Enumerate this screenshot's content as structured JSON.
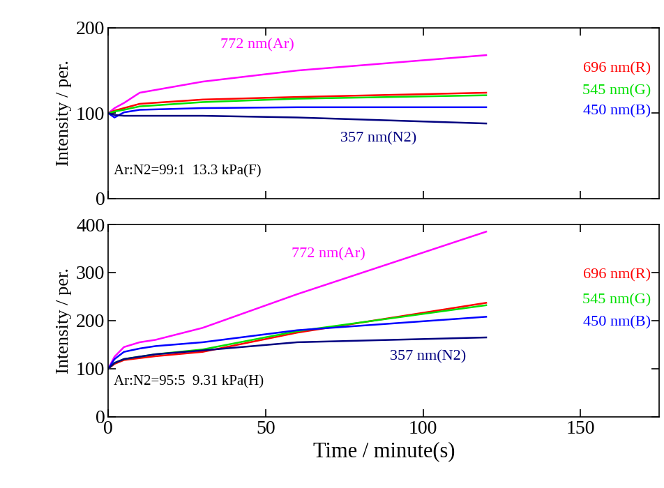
{
  "chart_data": [
    {
      "type": "line",
      "title": "Ar:N2=99:1  13.3 kPa(F)",
      "y_label": "Intensity / per.",
      "x": [
        0,
        2,
        5,
        10,
        30,
        60,
        120
      ],
      "xlim": [
        0,
        175
      ],
      "xticks": [
        0,
        50,
        100,
        150
      ],
      "ylim": [
        0,
        200
      ],
      "yticks": [
        0,
        100,
        200
      ],
      "tick_labels": "y",
      "grid": false,
      "series": [
        {
          "name": "772 nm(Ar)",
          "color": "#ff00ff",
          "values": [
            100,
            106,
            112,
            124,
            137,
            150,
            168
          ]
        },
        {
          "name": "696 nm(R)",
          "color": "#ff0000",
          "values": [
            100,
            103,
            106,
            111,
            116,
            119,
            124
          ]
        },
        {
          "name": "545 nm(G)",
          "color": "#00e000",
          "values": [
            100,
            102,
            104,
            108,
            113,
            117,
            121
          ]
        },
        {
          "name": "450 nm(B)",
          "color": "#0000ff",
          "values": [
            100,
            95,
            101,
            104,
            106,
            107,
            107
          ]
        },
        {
          "name": "357 nm(N2)",
          "color": "#000080",
          "values": [
            100,
            98,
            97,
            97,
            97,
            95,
            88
          ]
        }
      ]
    },
    {
      "type": "line",
      "title": "Ar:N2=95:5  9.31 kPa(H)",
      "x_label": "Time / minute(s)",
      "y_label": "Intensity / per.",
      "x": [
        0,
        2,
        5,
        10,
        15,
        30,
        60,
        120
      ],
      "xlim": [
        0,
        175
      ],
      "xticks": [
        0,
        50,
        100,
        150
      ],
      "ylim": [
        0,
        400
      ],
      "yticks": [
        0,
        100,
        200,
        300,
        400
      ],
      "grid": false,
      "series": [
        {
          "name": "772 nm(Ar)",
          "color": "#ff00ff",
          "values": [
            100,
            125,
            145,
            155,
            160,
            185,
            255,
            385
          ]
        },
        {
          "name": "696 nm(R)",
          "color": "#ff0000",
          "values": [
            100,
            110,
            118,
            122,
            126,
            135,
            175,
            237
          ]
        },
        {
          "name": "545 nm(G)",
          "color": "#00e000",
          "values": [
            100,
            112,
            120,
            125,
            130,
            140,
            178,
            232
          ]
        },
        {
          "name": "450 nm(B)",
          "color": "#0000ff",
          "values": [
            100,
            120,
            135,
            142,
            147,
            155,
            180,
            208
          ]
        },
        {
          "name": "357 nm(N2)",
          "color": "#000080",
          "values": [
            100,
            112,
            120,
            125,
            130,
            138,
            155,
            165
          ]
        }
      ]
    }
  ]
}
